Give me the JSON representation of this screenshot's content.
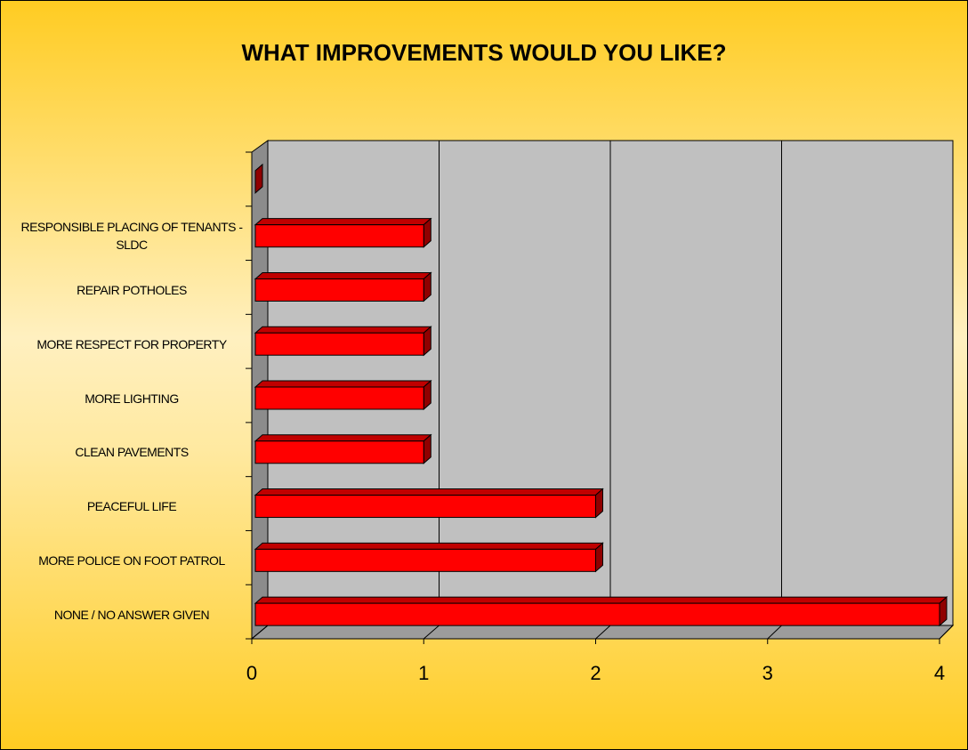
{
  "chart_data": {
    "type": "bar",
    "orientation": "horizontal",
    "title": "WHAT IMPROVEMENTS WOULD YOU LIKE?",
    "categories": [
      "NONE / NO ANSWER GIVEN",
      "MORE POLICE ON FOOT PATROL",
      "PEACEFUL LIFE",
      "CLEAN PAVEMENTS",
      "MORE LIGHTING",
      "MORE RESPECT FOR PROPERTY",
      "REPAIR POTHOLES",
      "RESPONSIBLE PLACING OF TENANTS - SLDC",
      null
    ],
    "values": [
      4,
      2,
      2,
      1,
      1,
      1,
      1,
      1,
      0
    ],
    "color": "#ff0000",
    "xlim": [
      0,
      4
    ],
    "xticks": [
      0,
      1,
      2,
      3,
      4
    ],
    "grid": true
  }
}
